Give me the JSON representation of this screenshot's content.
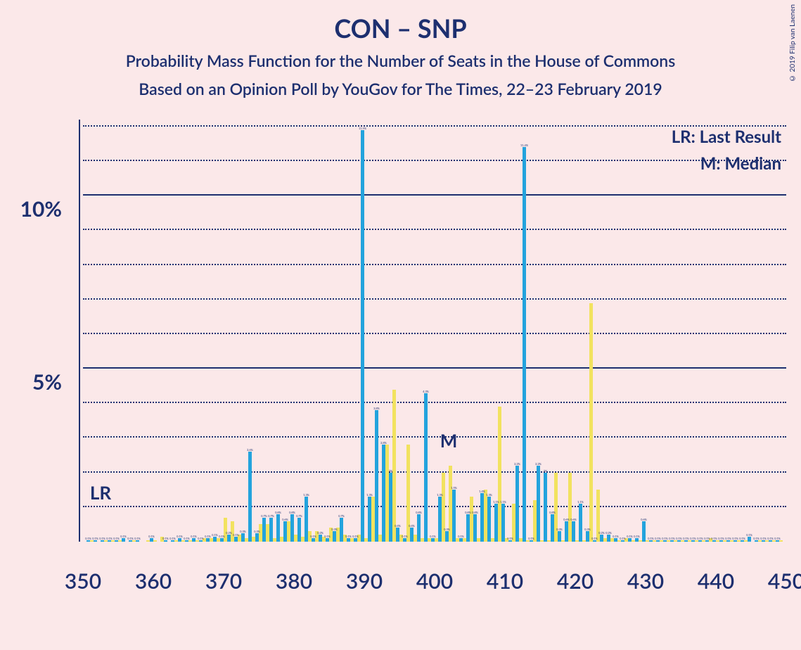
{
  "title": "CON – SNP",
  "subtitle1": "Probability Mass Function for the Number of Seats in the House of Commons",
  "subtitle2": "Based on an Opinion Poll by YouGov for The Times, 22–23 February 2019",
  "copyright": "© 2019 Filip van Laenen",
  "legend": {
    "lr": "LR: Last Result",
    "m": "M: Median"
  },
  "chart": {
    "type": "bar",
    "background_color": "#fbe8e9",
    "text_color": "#1d2f6f",
    "blue": "#23a3dd",
    "yellow": "#f2e25f",
    "xlim": [
      350,
      450
    ],
    "ylim": [
      0,
      12.2
    ],
    "x_ticks": [
      350,
      360,
      370,
      380,
      390,
      400,
      410,
      420,
      430,
      440,
      450
    ],
    "y_major": [
      5,
      10
    ],
    "y_minor": [
      1,
      2,
      3,
      4,
      6,
      7,
      8,
      9,
      11,
      12
    ],
    "lr_x": 352.5,
    "m_x": 402,
    "bars": [
      {
        "x": 351,
        "b": 0.05,
        "y": 0.05
      },
      {
        "x": 352,
        "b": 0.05,
        "y": 0
      },
      {
        "x": 353,
        "b": 0.05,
        "y": 0.05
      },
      {
        "x": 354,
        "b": 0.05,
        "y": 0.05
      },
      {
        "x": 355,
        "b": 0.05,
        "y": 0.05
      },
      {
        "x": 356,
        "b": 0.1,
        "y": 0
      },
      {
        "x": 357,
        "b": 0.05,
        "y": 0.05
      },
      {
        "x": 358,
        "b": 0.05,
        "y": 0
      },
      {
        "x": 359,
        "b": 0,
        "y": 0.05
      },
      {
        "x": 360,
        "b": 0.1,
        "y": 0.05
      },
      {
        "x": 361,
        "b": 0,
        "y": 0.15
      },
      {
        "x": 362,
        "b": 0.05,
        "y": 0
      },
      {
        "x": 363,
        "b": 0.05,
        "y": 0.05
      },
      {
        "x": 364,
        "b": 0.1,
        "y": 0.05
      },
      {
        "x": 365,
        "b": 0.05,
        "y": 0.05
      },
      {
        "x": 366,
        "b": 0.1,
        "y": 0.05
      },
      {
        "x": 367,
        "b": 0.05,
        "y": 0.1
      },
      {
        "x": 368,
        "b": 0.1,
        "y": 0.1
      },
      {
        "x": 369,
        "b": 0.15,
        "y": 0.1
      },
      {
        "x": 370,
        "b": 0.1,
        "y": 0.7
      },
      {
        "x": 371,
        "b": 0.2,
        "y": 0.6
      },
      {
        "x": 372,
        "b": 0.15,
        "y": 0.2
      },
      {
        "x": 373,
        "b": 0.25,
        "y": 0.1
      },
      {
        "x": 374,
        "b": 2.6,
        "y": 0.15
      },
      {
        "x": 375,
        "b": 0.25,
        "y": 0.5
      },
      {
        "x": 376,
        "b": 0.7,
        "y": 0.5
      },
      {
        "x": 377,
        "b": 0.7,
        "y": 0.1
      },
      {
        "x": 378,
        "b": 0.8,
        "y": 0.15
      },
      {
        "x": 379,
        "b": 0.6,
        "y": 0.6
      },
      {
        "x": 380,
        "b": 0.8,
        "y": 0.2
      },
      {
        "x": 381,
        "b": 0.7,
        "y": 0.15
      },
      {
        "x": 382,
        "b": 1.3,
        "y": 0.3
      },
      {
        "x": 383,
        "b": 0.1,
        "y": 0.3
      },
      {
        "x": 384,
        "b": 0.2,
        "y": 0.15
      },
      {
        "x": 385,
        "b": 0.1,
        "y": 0.4
      },
      {
        "x": 386,
        "b": 0.3,
        "y": 0.4
      },
      {
        "x": 387,
        "b": 0.7,
        "y": 0.2
      },
      {
        "x": 388,
        "b": 0.1,
        "y": 0.1
      },
      {
        "x": 389,
        "b": 0.1,
        "y": 0.2
      },
      {
        "x": 390,
        "b": 11.9,
        "y": 0.1
      },
      {
        "x": 391,
        "b": 1.3,
        "y": 1.3
      },
      {
        "x": 392,
        "b": 3.8,
        "y": 0.2
      },
      {
        "x": 393,
        "b": 2.8,
        "y": 2.8
      },
      {
        "x": 394,
        "b": 2.0,
        "y": 4.4
      },
      {
        "x": 395,
        "b": 0.4,
        "y": 0.2
      },
      {
        "x": 396,
        "b": 0.1,
        "y": 2.8
      },
      {
        "x": 397,
        "b": 0.4,
        "y": 0.2
      },
      {
        "x": 398,
        "b": 0.8,
        "y": 0.1
      },
      {
        "x": 399,
        "b": 4.3,
        "y": 0.1
      },
      {
        "x": 400,
        "b": 0.1,
        "y": 0.1
      },
      {
        "x": 401,
        "b": 1.3,
        "y": 2.0
      },
      {
        "x": 402,
        "b": 0.3,
        "y": 2.2
      },
      {
        "x": 403,
        "b": 1.5,
        "y": 0.1
      },
      {
        "x": 404,
        "b": 0.1,
        "y": 0.1
      },
      {
        "x": 405,
        "b": 0.8,
        "y": 1.3
      },
      {
        "x": 406,
        "b": 0.8,
        "y": 0.1
      },
      {
        "x": 407,
        "b": 1.4,
        "y": 1.5
      },
      {
        "x": 408,
        "b": 1.3,
        "y": 0.1
      },
      {
        "x": 409,
        "b": 1.1,
        "y": 3.9
      },
      {
        "x": 410,
        "b": 1.1,
        "y": 0.1
      },
      {
        "x": 411,
        "b": 0.05,
        "y": 1.1
      },
      {
        "x": 412,
        "b": 2.2,
        "y": 0.1
      },
      {
        "x": 413,
        "b": 11.4,
        "y": 0.05
      },
      {
        "x": 414,
        "b": 0.05,
        "y": 1.2
      },
      {
        "x": 415,
        "b": 2.2,
        "y": 0.05
      },
      {
        "x": 416,
        "b": 2.0,
        "y": 0.05
      },
      {
        "x": 417,
        "b": 0.8,
        "y": 2.0
      },
      {
        "x": 418,
        "b": 0.3,
        "y": 0.05
      },
      {
        "x": 419,
        "b": 0.6,
        "y": 2.0
      },
      {
        "x": 420,
        "b": 0.6,
        "y": 0.05
      },
      {
        "x": 421,
        "b": 1.1,
        "y": 0.05
      },
      {
        "x": 422,
        "b": 0.3,
        "y": 6.9
      },
      {
        "x": 423,
        "b": 0.05,
        "y": 1.5
      },
      {
        "x": 424,
        "b": 0.2,
        "y": 0.1
      },
      {
        "x": 425,
        "b": 0.2,
        "y": 0.1
      },
      {
        "x": 426,
        "b": 0.1,
        "y": 0.05
      },
      {
        "x": 427,
        "b": 0.05,
        "y": 0.1
      },
      {
        "x": 428,
        "b": 0.1,
        "y": 0.05
      },
      {
        "x": 429,
        "b": 0.1,
        "y": 0.05
      },
      {
        "x": 430,
        "b": 0.6,
        "y": 0.05
      },
      {
        "x": 431,
        "b": 0.05,
        "y": 0.05
      },
      {
        "x": 432,
        "b": 0.05,
        "y": 0.05
      },
      {
        "x": 433,
        "b": 0.05,
        "y": 0.05
      },
      {
        "x": 434,
        "b": 0.05,
        "y": 0.05
      },
      {
        "x": 435,
        "b": 0.05,
        "y": 0.05
      },
      {
        "x": 436,
        "b": 0.05,
        "y": 0.05
      },
      {
        "x": 437,
        "b": 0.05,
        "y": 0.05
      },
      {
        "x": 438,
        "b": 0.05,
        "y": 0.05
      },
      {
        "x": 439,
        "b": 0.05,
        "y": 0.1
      },
      {
        "x": 440,
        "b": 0.05,
        "y": 0.05
      },
      {
        "x": 441,
        "b": 0.05,
        "y": 0.05
      },
      {
        "x": 442,
        "b": 0.05,
        "y": 0.05
      },
      {
        "x": 443,
        "b": 0.05,
        "y": 0.05
      },
      {
        "x": 444,
        "b": 0.05,
        "y": 0.05
      },
      {
        "x": 445,
        "b": 0.15,
        "y": 0
      },
      {
        "x": 446,
        "b": 0.05,
        "y": 0.05
      },
      {
        "x": 447,
        "b": 0.05,
        "y": 0.05
      },
      {
        "x": 448,
        "b": 0.05,
        "y": 0.05
      },
      {
        "x": 449,
        "b": 0.05,
        "y": 0.05
      }
    ]
  }
}
